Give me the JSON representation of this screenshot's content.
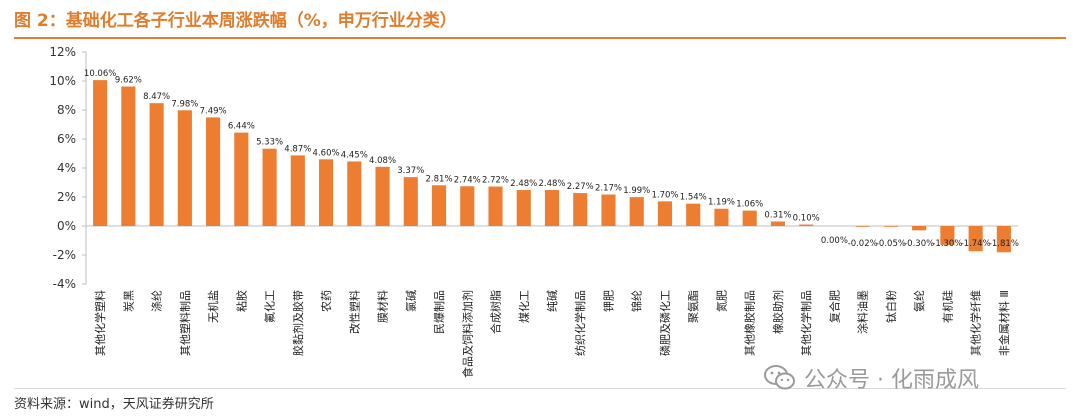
{
  "title": "图 2：基础化工各子行业本周涨跌幅（%，申万行业分类）",
  "source": "资料来源：wind，天风证券研究所",
  "watermark": "公众号 · 化雨成风",
  "colors": {
    "bar": "#ed7d31",
    "accent": "#e07d2c",
    "axis": "#bfbfbf"
  },
  "chart_data": {
    "type": "bar",
    "ylim": [
      -4,
      12
    ],
    "yticks": [
      -4,
      -2,
      0,
      2,
      4,
      6,
      8,
      10,
      12
    ],
    "ytick_labels": [
      "-4%",
      "-2%",
      "0%",
      "2%",
      "4%",
      "6%",
      "8%",
      "10%",
      "12%"
    ],
    "categories": [
      "其他化学塑料",
      "炭黑",
      "涤纶",
      "其他塑料制品",
      "无机盐",
      "粘胶",
      "氟化工",
      "胶黏剂及胶带",
      "农药",
      "改性塑料",
      "膜材料",
      "氯碱",
      "民爆制品",
      "食品及饲料添加剂",
      "合成树脂",
      "煤化工",
      "纯碱",
      "纺织化学制品",
      "钾肥",
      "锦纶",
      "磷肥及磷化工",
      "聚氨酯",
      "氮肥",
      "其他橡胶制品",
      "橡胶助剂",
      "其他化学制品",
      "复合肥",
      "涂料油墨",
      "钛白粉",
      "氨纶",
      "有机硅",
      "其他化学纤维",
      "非金属材料 Ⅲ"
    ],
    "values": [
      10.06,
      9.62,
      8.47,
      7.98,
      7.49,
      6.44,
      5.33,
      4.87,
      4.6,
      4.45,
      4.08,
      3.37,
      2.81,
      2.74,
      2.72,
      2.48,
      2.48,
      2.27,
      2.17,
      1.99,
      1.7,
      1.54,
      1.19,
      1.06,
      0.31,
      0.1,
      0.0,
      -0.02,
      -0.05,
      -0.3,
      -1.3,
      -1.74,
      -1.81
    ],
    "data_labels": [
      "10.06%",
      "9.62%",
      "8.47%",
      "7.98%",
      "7.49%",
      "6.44%",
      "5.33%",
      "4.87%",
      "4.60%",
      "4.45%",
      "4.08%",
      "3.37%",
      "2.81%",
      "2.74%",
      "2.72%",
      "2.48%",
      "2.48%",
      "2.27%",
      "2.17%",
      "1.99%",
      "1.70%",
      "1.54%",
      "1.19%",
      "1.06%",
      "0.31%",
      "0.10%",
      "0.00%",
      "-0.02%",
      "-0.05%",
      "-0.30%",
      "-1.30%",
      "-1.74%",
      "-1.81%"
    ],
    "grid": false,
    "legend": "none"
  }
}
